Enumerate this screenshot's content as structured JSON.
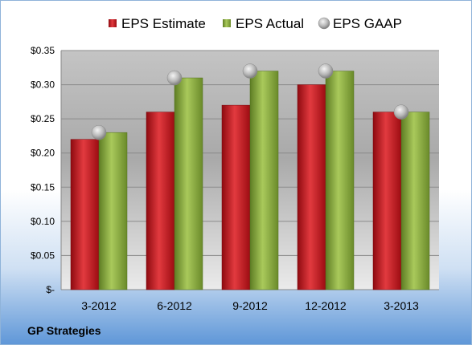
{
  "chart_data": {
    "type": "bar",
    "categories": [
      "3-2012",
      "6-2012",
      "9-2012",
      "12-2012",
      "3-2013"
    ],
    "series": [
      {
        "name": "EPS Estimate",
        "kind": "bar",
        "color": "#c0141c",
        "values": [
          0.22,
          0.26,
          0.27,
          0.3,
          0.26
        ]
      },
      {
        "name": "EPS Actual",
        "kind": "bar",
        "color": "#7fa23a",
        "values": [
          0.23,
          0.31,
          0.32,
          0.32,
          0.26
        ]
      },
      {
        "name": "EPS GAAP",
        "kind": "marker",
        "color": "#b0b0b0",
        "values": [
          0.23,
          0.31,
          0.32,
          0.32,
          0.26
        ]
      }
    ],
    "yticks": [
      "$-",
      "$0.05",
      "$0.10",
      "$0.15",
      "$0.20",
      "$0.25",
      "$0.30",
      "$0.35"
    ],
    "ylim": [
      0,
      0.35
    ],
    "grid": true,
    "legend_position": "top"
  },
  "footer": {
    "company": "GP Strategies"
  }
}
